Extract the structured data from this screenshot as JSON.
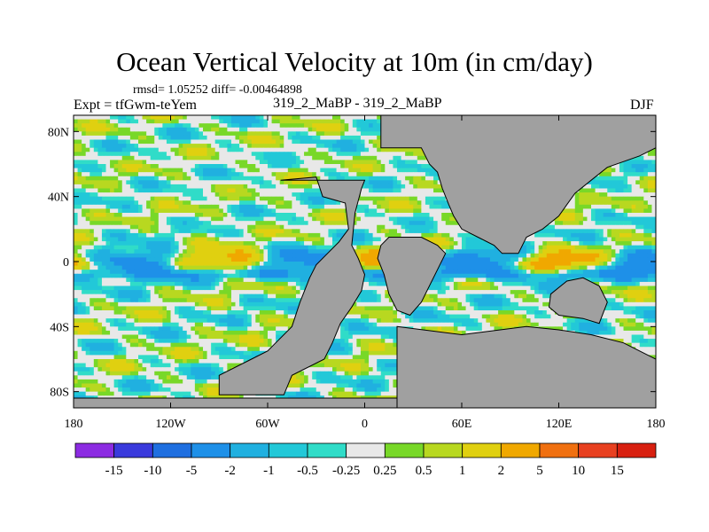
{
  "chart_data": {
    "type": "heatmap",
    "title": "Ocean Vertical Velocity at 10m (in cm/day)",
    "rmsd_text": "rmsd= 1.05252 diff= -0.00464898",
    "left_label": "Expt = tfGwm-teYem",
    "center_label": "319_2_MaBP - 319_2_MaBP",
    "right_label": "DJF",
    "x_ticks": [
      "180",
      "120W",
      "60W",
      "0",
      "60E",
      "120E",
      "180"
    ],
    "x_tick_values": [
      -180,
      -120,
      -60,
      0,
      60,
      120,
      180
    ],
    "y_ticks": [
      "80N",
      "40N",
      "0",
      "40S",
      "80S"
    ],
    "y_tick_values": [
      80,
      40,
      0,
      -40,
      -80
    ],
    "xlim": [
      -180,
      180
    ],
    "ylim": [
      -90,
      90
    ],
    "land_color": "#a0a0a0",
    "colorbar": {
      "levels": [
        "-15",
        "-10",
        "-5",
        "-2",
        "-1",
        "-0.5",
        "-0.25",
        "0.25",
        "0.5",
        "1",
        "2",
        "5",
        "10",
        "15"
      ],
      "colors": [
        "#8c2be2",
        "#3a3adc",
        "#1f6fe0",
        "#1e90e8",
        "#20b0e0",
        "#22c8d8",
        "#30dcc8",
        "#e8e8e8",
        "#78d828",
        "#b8d820",
        "#e0d010",
        "#f0a800",
        "#f07010",
        "#e84020",
        "#d82010"
      ]
    }
  }
}
